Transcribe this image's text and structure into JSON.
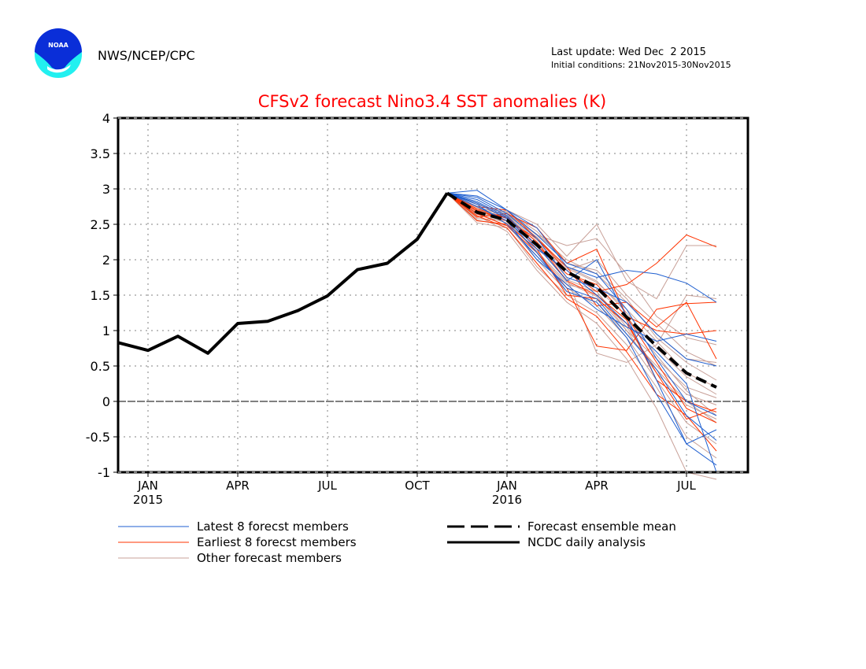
{
  "header": {
    "agency": "NWS/NCEP/CPC",
    "logo_text": "NOAA",
    "last_update": "Last update: Wed Dec  2 2015",
    "initial_conditions": "Initial conditions: 21Nov2015-30Nov2015"
  },
  "colors": {
    "title": "#ff0000",
    "latest": "#1f5fd0",
    "earliest": "#ff3300",
    "other": "#c8a098",
    "observed": "#000000",
    "mean": "#000000",
    "grid": "#808080",
    "logo_dark": "#0a2ed8",
    "logo_light": "#22f0f0"
  },
  "chart_data": {
    "type": "line",
    "title": "CFSv2 forecast Nino3.4 SST anomalies (K)",
    "xlabel": "",
    "ylabel": "",
    "ylim": [
      -1,
      4
    ],
    "yticks": [
      -1,
      -0.5,
      0,
      0.5,
      1,
      1.5,
      2,
      2.5,
      3,
      3.5,
      4
    ],
    "ytick_labels": [
      "-1",
      "-0.5",
      "0",
      "0.5",
      "1",
      "1.5",
      "2",
      "2.5",
      "3",
      "3.5",
      "4"
    ],
    "x": [
      "Dec 2014",
      "Jan 2015",
      "Feb 2015",
      "Mar 2015",
      "Apr 2015",
      "May 2015",
      "Jun 2015",
      "Jul 2015",
      "Aug 2015",
      "Sep 2015",
      "Oct 2015",
      "Nov 2015",
      "Dec 2015",
      "Jan 2016",
      "Feb 2016",
      "Mar 2016",
      "Apr 2016",
      "May 2016",
      "Jun 2016",
      "Jul 2016",
      "Aug 2016"
    ],
    "xlim_months": [
      -0.5,
      20.5
    ],
    "xticks": [
      {
        "month_index": 1,
        "label": "JAN",
        "year": "2015"
      },
      {
        "month_index": 4,
        "label": "APR",
        "year": ""
      },
      {
        "month_index": 7,
        "label": "JUL",
        "year": ""
      },
      {
        "month_index": 10,
        "label": "OCT",
        "year": ""
      },
      {
        "month_index": 13,
        "label": "JAN",
        "year": "2016"
      },
      {
        "month_index": 16,
        "label": "APR",
        "year": ""
      },
      {
        "month_index": 19,
        "label": "JUL",
        "year": ""
      }
    ],
    "grid": true,
    "zero_line": true,
    "legend_position": "bottom",
    "series": [
      {
        "name": "NCDC daily analysis",
        "kind": "observed",
        "start_index": 0,
        "values": [
          0.83,
          0.72,
          0.92,
          0.68,
          1.1,
          1.13,
          1.28,
          1.49,
          1.86,
          1.95,
          2.29,
          2.94
        ]
      },
      {
        "name": "Forecast ensemble mean",
        "kind": "mean",
        "start_index": 11,
        "values": [
          2.94,
          2.67,
          2.56,
          2.21,
          1.83,
          1.61,
          1.19,
          0.78,
          0.4,
          0.2
        ]
      }
    ],
    "members": {
      "start_index": 11,
      "latest": [
        [
          2.94,
          2.98,
          2.7,
          2.45,
          1.9,
          1.75,
          1.85,
          1.8,
          1.67,
          1.4
        ],
        [
          2.94,
          2.88,
          2.65,
          2.3,
          1.75,
          1.6,
          1.4,
          0.95,
          0.6,
          0.5
        ],
        [
          2.94,
          2.85,
          2.62,
          2.2,
          1.7,
          2.0,
          1.2,
          0.3,
          -0.6,
          -0.9
        ],
        [
          2.94,
          2.8,
          2.58,
          2.1,
          1.55,
          1.4,
          0.9,
          0.1,
          -0.6,
          -0.4
        ],
        [
          2.94,
          2.9,
          2.7,
          2.35,
          1.95,
          1.8,
          1.3,
          0.6,
          0.0,
          -0.2
        ],
        [
          2.94,
          2.75,
          2.55,
          2.0,
          1.65,
          1.3,
          1.05,
          0.85,
          0.95,
          0.85
        ],
        [
          2.94,
          2.82,
          2.6,
          2.15,
          1.85,
          1.5,
          1.1,
          0.7,
          0.25,
          -1.0
        ],
        [
          2.94,
          2.78,
          2.5,
          2.05,
          1.6,
          1.45,
          0.95,
          0.45,
          -0.2,
          -0.55
        ]
      ],
      "earliest": [
        [
          2.94,
          2.7,
          2.55,
          2.3,
          1.85,
          1.55,
          1.65,
          1.95,
          2.35,
          2.18
        ],
        [
          2.94,
          2.65,
          2.48,
          2.1,
          1.6,
          0.78,
          0.72,
          1.3,
          1.38,
          1.4
        ],
        [
          2.94,
          2.6,
          2.65,
          2.45,
          1.95,
          2.15,
          1.2,
          1.0,
          0.95,
          1.0
        ],
        [
          2.94,
          2.75,
          2.7,
          2.3,
          1.9,
          1.35,
          1.4,
          1.05,
          1.4,
          0.6
        ],
        [
          2.94,
          2.55,
          2.5,
          2.15,
          1.5,
          1.45,
          1.1,
          0.4,
          -0.25,
          -0.1
        ],
        [
          2.94,
          2.68,
          2.6,
          2.25,
          1.7,
          1.5,
          1.15,
          0.3,
          0.0,
          -0.15
        ],
        [
          2.94,
          2.62,
          2.45,
          1.95,
          1.45,
          1.2,
          0.7,
          0.1,
          -0.2,
          -0.7
        ],
        [
          2.94,
          2.72,
          2.58,
          2.2,
          1.8,
          1.65,
          1.2,
          0.55,
          -0.1,
          -0.3
        ]
      ],
      "other": [
        [
          2.94,
          2.6,
          2.7,
          2.5,
          2.05,
          2.5,
          1.7,
          1.45,
          2.2,
          2.2
        ],
        [
          2.94,
          2.65,
          2.6,
          2.25,
          1.75,
          0.68,
          0.55,
          0.8,
          1.5,
          1.45
        ],
        [
          2.94,
          2.7,
          2.65,
          2.35,
          2.2,
          2.3,
          1.8,
          1.2,
          0.9,
          0.8
        ],
        [
          2.94,
          2.58,
          2.55,
          2.1,
          1.65,
          1.55,
          1.0,
          0.6,
          0.2,
          0.05
        ],
        [
          2.94,
          2.75,
          2.5,
          2.0,
          1.55,
          1.4,
          0.95,
          0.5,
          0.1,
          -0.05
        ],
        [
          2.94,
          2.68,
          2.62,
          2.28,
          1.9,
          1.7,
          1.25,
          0.75,
          0.35,
          0.1
        ],
        [
          2.94,
          2.8,
          2.58,
          2.2,
          1.8,
          1.6,
          1.2,
          0.65,
          0.15,
          -0.2
        ],
        [
          2.94,
          2.52,
          2.45,
          1.9,
          1.5,
          1.25,
          0.8,
          0.2,
          -0.5,
          -0.8
        ],
        [
          2.94,
          2.62,
          2.4,
          1.85,
          1.4,
          1.1,
          0.6,
          -0.1,
          -1.0,
          -1.1
        ],
        [
          2.94,
          2.72,
          2.68,
          2.4,
          1.95,
          1.85,
          1.45,
          0.9,
          0.55,
          0.3
        ],
        [
          2.94,
          2.66,
          2.55,
          2.18,
          1.72,
          1.55,
          1.05,
          0.45,
          0.0,
          -0.3
        ],
        [
          2.94,
          2.74,
          2.63,
          2.32,
          1.88,
          1.68,
          1.3,
          0.85,
          0.4,
          0.2
        ],
        [
          2.94,
          2.56,
          2.48,
          2.05,
          1.6,
          1.35,
          0.9,
          0.3,
          -0.3,
          -0.6
        ],
        [
          2.94,
          2.7,
          2.6,
          2.25,
          1.85,
          2.0,
          1.5,
          1.1,
          0.7,
          0.5
        ],
        [
          2.94,
          2.64,
          2.52,
          2.12,
          1.68,
          1.48,
          1.0,
          0.4,
          -0.05,
          -0.25
        ],
        [
          2.94,
          2.78,
          2.66,
          2.36,
          2.0,
          1.8,
          1.4,
          0.95,
          0.6,
          0.55
        ]
      ]
    },
    "legend": [
      {
        "label": "Latest 8 forecst members",
        "kind": "latest"
      },
      {
        "label": "Earliest 8 forecst members",
        "kind": "earliest"
      },
      {
        "label": "Other forecast members",
        "kind": "other"
      },
      {
        "label": "Forecast ensemble mean",
        "kind": "mean"
      },
      {
        "label": "NCDC daily analysis",
        "kind": "observed"
      }
    ]
  }
}
